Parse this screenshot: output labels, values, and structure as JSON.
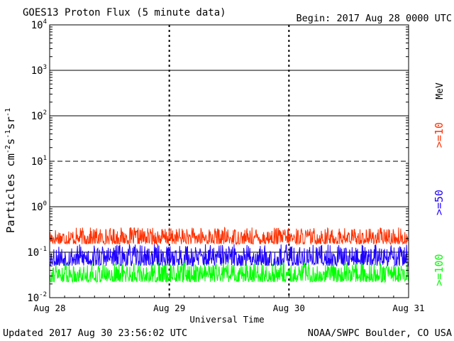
{
  "header": {
    "title": "GOES13 Proton Flux (5 minute data)",
    "begin": "Begin: 2017 Aug 28 0000 UTC"
  },
  "footer": {
    "updated": "Updated 2017 Aug 30 23:56:02 UTC",
    "credit": "NOAA/SWPC Boulder, CO USA"
  },
  "chart_data": {
    "type": "line",
    "title": "GOES13 Proton Flux (5 minute data)",
    "xlabel": "Universal Time",
    "ylabel": "Particles cm-2s-1sr-1",
    "ylabel_parts": {
      "main": "Particles cm",
      "e1": "-2",
      "s": "s",
      "e2": "-1",
      "sr": "sr",
      "e3": "-1"
    },
    "yscale": "log",
    "ylim": [
      0.01,
      10000
    ],
    "yticks": [
      {
        "value": 0.01,
        "base": "10",
        "exp": "-2"
      },
      {
        "value": 0.1,
        "base": "10",
        "exp": "-1"
      },
      {
        "value": 1,
        "base": "10",
        "exp": "0"
      },
      {
        "value": 10,
        "base": "10",
        "exp": "1"
      },
      {
        "value": 100,
        "base": "10",
        "exp": "2"
      },
      {
        "value": 1000,
        "base": "10",
        "exp": "3"
      },
      {
        "value": 10000,
        "base": "10",
        "exp": "4"
      }
    ],
    "categories": [
      "Aug 28",
      "Aug 29",
      "Aug 30",
      "Aug 31"
    ],
    "xlim": [
      "2017-08-28T00:00Z",
      "2017-08-31T00:00Z"
    ],
    "data_end": "2017-08-30T23:55Z",
    "unit_label": "MeV",
    "series": [
      {
        "name": ">=10",
        "color": "#ff3000",
        "typical_range": [
          0.15,
          0.35
        ]
      },
      {
        "name": ">=50",
        "color": "#1e00ff",
        "typical_range": [
          0.05,
          0.15
        ]
      },
      {
        "name": ">=100",
        "color": "#00ff00",
        "typical_range": [
          0.022,
          0.06
        ]
      }
    ],
    "threshold_lines": [
      {
        "value": 10,
        "style": "dashed"
      },
      {
        "value": 0.1,
        "style": "solid"
      }
    ],
    "grid": true
  }
}
